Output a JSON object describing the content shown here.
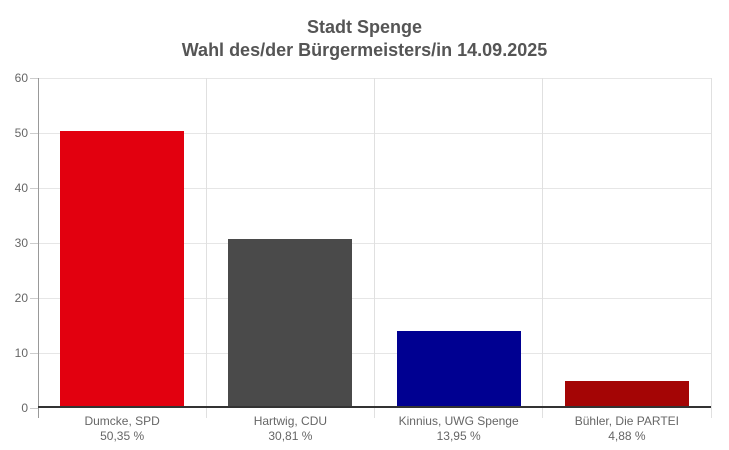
{
  "title": {
    "line1": "Stadt Spenge",
    "line2": "Wahl des/der Bürgermeisters/in 14.09.2025"
  },
  "chart_data": {
    "type": "bar",
    "title": "Stadt Spenge – Wahl des/der Bürgermeisters/in 14.09.2025",
    "categories": [
      "Dumcke, SPD",
      "Hartwig, CDU",
      "Kinnius, UWG Spenge",
      "Bühler, Die PARTEI"
    ],
    "values": [
      50.35,
      30.81,
      13.95,
      4.88
    ],
    "value_labels": [
      "50,35 %",
      "30,81 %",
      "13,95 %",
      "4,88 %"
    ],
    "bar_colors": [
      "#e2000f",
      "#4a4a4a",
      "#000091",
      "#a40505"
    ],
    "xlabel": "",
    "ylabel": "",
    "ylim": [
      0,
      60
    ],
    "yticks": [
      0,
      10,
      20,
      30,
      40,
      50,
      60
    ],
    "grid": true,
    "legend": "none"
  },
  "style": {
    "background": "#ffffff",
    "title_color": "#555555",
    "axis_label_color": "#666666",
    "gridline_color": "#e6e6e6",
    "category_line_color": "#e0e0e0",
    "yaxis_line_color": "#999999",
    "tick_color": "#cccccc",
    "baseline_color": "#333333"
  }
}
